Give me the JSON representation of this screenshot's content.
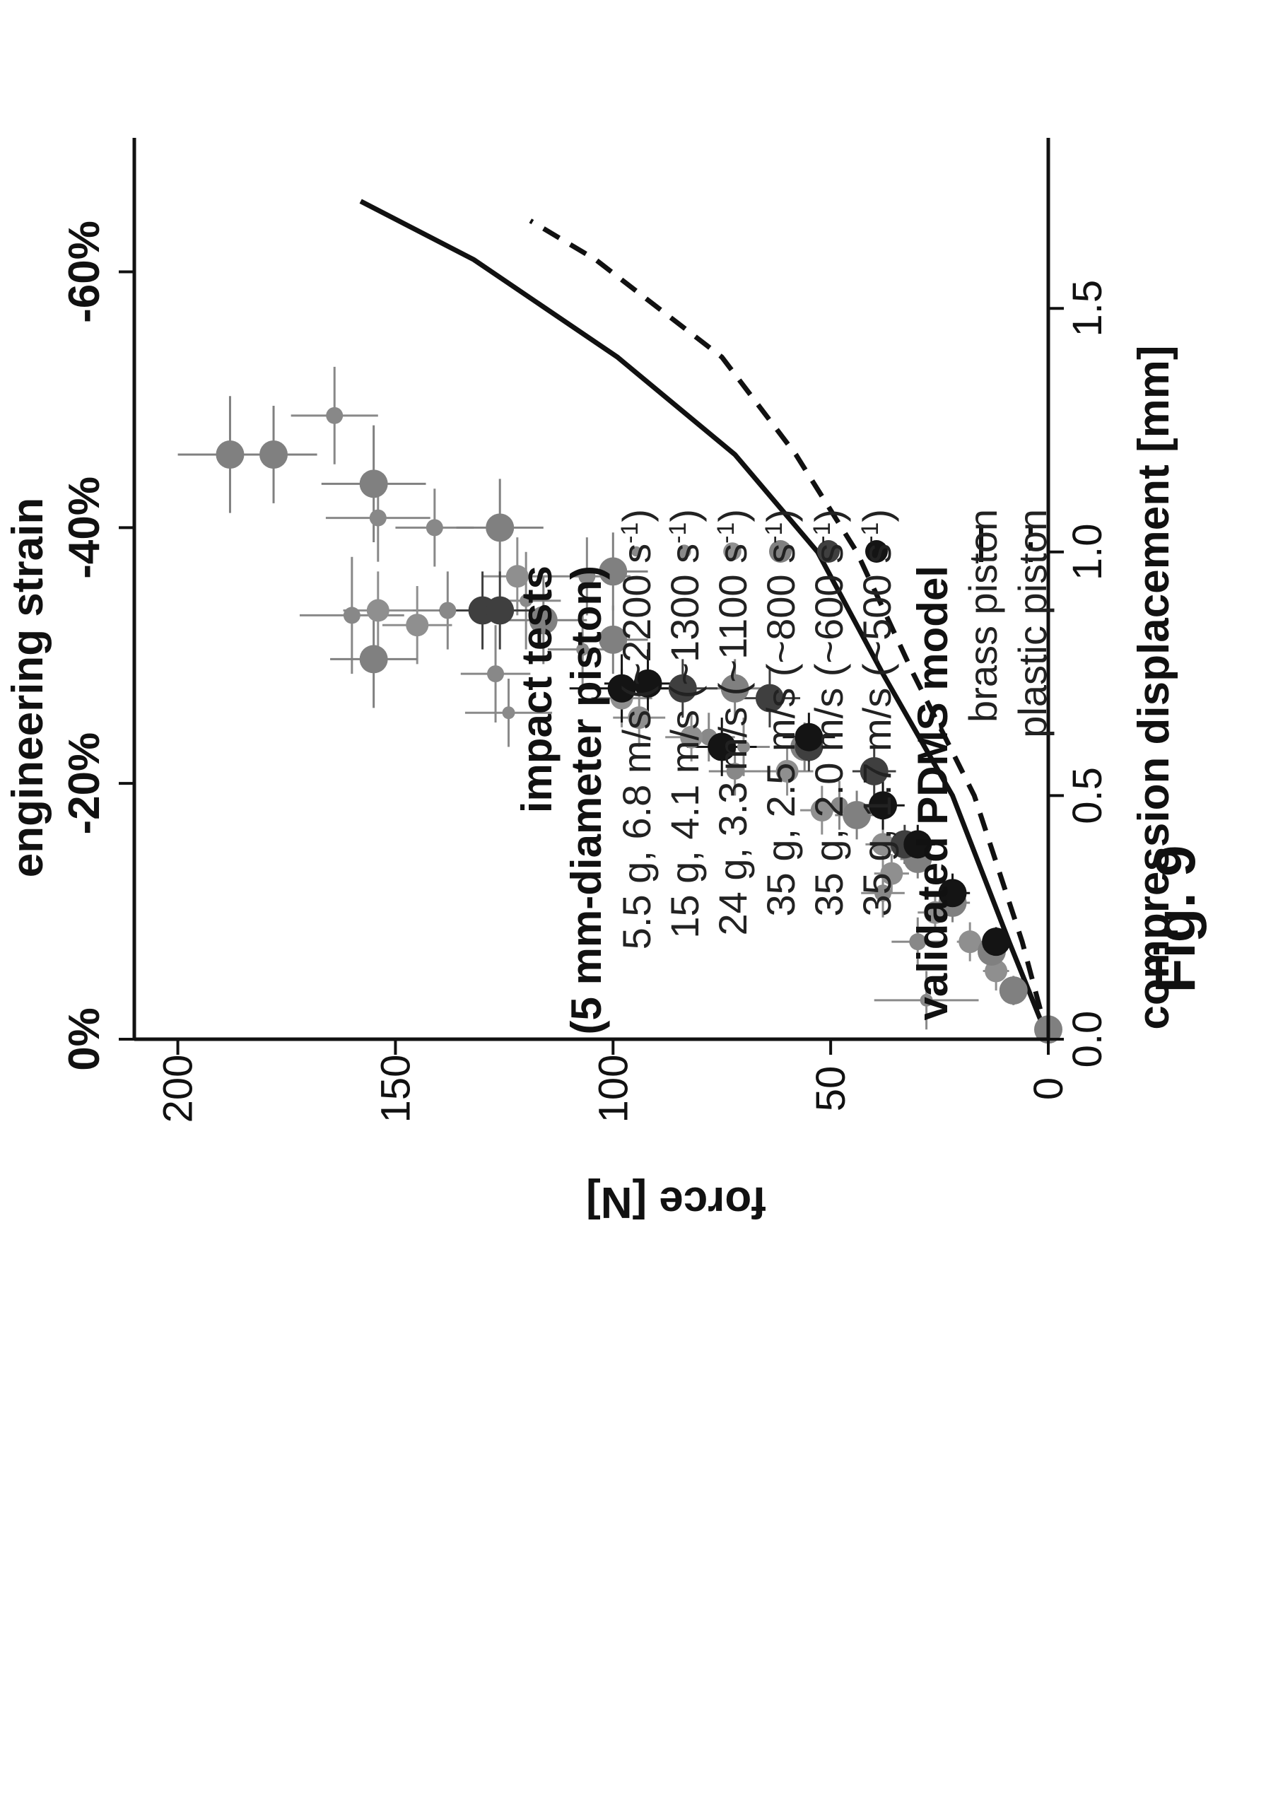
{
  "figure": {
    "label": "Fig. 9"
  },
  "chart_data": {
    "type": "scatter",
    "xlabel": "compression displacement [mm]",
    "ylabel": "force [N]",
    "x2label": "engineering strain",
    "xlim": [
      0,
      1.85
    ],
    "ylim": [
      0,
      210
    ],
    "x_ticks": [
      0.0,
      0.5,
      1.0,
      1.5
    ],
    "x_tick_labels": [
      "0.0",
      "0.5",
      "1.0",
      "1.5"
    ],
    "y_ticks": [
      0,
      50,
      100,
      150,
      200
    ],
    "y_tick_labels": [
      "0",
      "50",
      "100",
      "150",
      "200"
    ],
    "x2_ticks": [
      0,
      0.525,
      1.05,
      1.575
    ],
    "x2_tick_labels": [
      "0%",
      "-20%",
      "-40%",
      "-60%"
    ],
    "grid": false,
    "legend_position": "right",
    "legend": {
      "impact_title": [
        "impact tests",
        "(5 mm-diameter piston)"
      ],
      "model_title": "validated PDMS model"
    },
    "series": [
      {
        "name": "5.5 g, 6.8 m/s (~2200 s",
        "name_suffix": "-1",
        "name_close": ")",
        "color": "#8a8a8a",
        "marker_size": 0.45,
        "points": [
          {
            "x": 0.08,
            "y": 28,
            "xerr": 0.06,
            "yerr": 12
          },
          {
            "x": 0.6,
            "y": 70,
            "xerr": 0.06,
            "yerr": 6
          },
          {
            "x": 0.9,
            "y": 120,
            "xerr": 0.1,
            "yerr": 8
          },
          {
            "x": 0.8,
            "y": 107,
            "xerr": 0.08,
            "yerr": 8
          },
          {
            "x": 0.67,
            "y": 124,
            "xerr": 0.07,
            "yerr": 10
          }
        ]
      },
      {
        "name": "15 g, 4.1 m/s (~1300 s",
        "name_suffix": "-1",
        "name_close": ")",
        "color": "#888888",
        "marker_size": 0.6,
        "points": [
          {
            "x": 0.2,
            "y": 30,
            "xerr": 0.05,
            "yerr": 6
          },
          {
            "x": 0.3,
            "y": 38,
            "xerr": 0.05,
            "yerr": 5
          },
          {
            "x": 1.28,
            "y": 164,
            "xerr": 0.1,
            "yerr": 10
          },
          {
            "x": 1.07,
            "y": 154,
            "xerr": 0.09,
            "yerr": 12
          },
          {
            "x": 0.87,
            "y": 160,
            "xerr": 0.12,
            "yerr": 12
          },
          {
            "x": 0.75,
            "y": 127,
            "xerr": 0.1,
            "yerr": 8
          },
          {
            "x": 0.95,
            "y": 106,
            "xerr": 0.08,
            "yerr": 10
          },
          {
            "x": 0.48,
            "y": 48,
            "xerr": 0.05,
            "yerr": 5
          },
          {
            "x": 0.55,
            "y": 72,
            "xerr": 0.05,
            "yerr": 6
          },
          {
            "x": 0.62,
            "y": 78,
            "xerr": 0.05,
            "yerr": 6
          },
          {
            "x": 1.05,
            "y": 141,
            "xerr": 0.08,
            "yerr": 9
          },
          {
            "x": 0.88,
            "y": 138,
            "xerr": 0.08,
            "yerr": 10
          }
        ]
      },
      {
        "name": "24 g, 3.3 m/s (~1100 s",
        "name_suffix": "-1",
        "name_close": ")",
        "color": "#8f8f8f",
        "marker_size": 0.8,
        "points": [
          {
            "x": 0.14,
            "y": 12,
            "xerr": 0.04,
            "yerr": 3
          },
          {
            "x": 0.2,
            "y": 18,
            "xerr": 0.04,
            "yerr": 3
          },
          {
            "x": 0.26,
            "y": 26,
            "xerr": 0.04,
            "yerr": 4
          },
          {
            "x": 0.34,
            "y": 36,
            "xerr": 0.04,
            "yerr": 4
          },
          {
            "x": 0.4,
            "y": 38,
            "xerr": 0.05,
            "yerr": 4
          },
          {
            "x": 0.47,
            "y": 52,
            "xerr": 0.05,
            "yerr": 5
          },
          {
            "x": 0.55,
            "y": 60,
            "xerr": 0.05,
            "yerr": 6
          },
          {
            "x": 0.62,
            "y": 82,
            "xerr": 0.05,
            "yerr": 6
          },
          {
            "x": 0.66,
            "y": 94,
            "xerr": 0.06,
            "yerr": 6
          },
          {
            "x": 0.85,
            "y": 145,
            "xerr": 0.08,
            "yerr": 8
          },
          {
            "x": 0.88,
            "y": 154,
            "xerr": 0.08,
            "yerr": 8
          },
          {
            "x": 0.95,
            "y": 122,
            "xerr": 0.08,
            "yerr": 8
          },
          {
            "x": 0.7,
            "y": 98,
            "xerr": 0.06,
            "yerr": 7
          }
        ]
      },
      {
        "name": "35 g, 2.5 m/s (~800 s",
        "name_suffix": "-1",
        "name_close": ")",
        "color": "#808080",
        "marker_size": 1.0,
        "points": [
          {
            "x": 0.02,
            "y": 0,
            "xerr": 0.02,
            "yerr": 2
          },
          {
            "x": 0.1,
            "y": 8,
            "xerr": 0.03,
            "yerr": 3
          },
          {
            "x": 0.18,
            "y": 13,
            "xerr": 0.03,
            "yerr": 3
          },
          {
            "x": 0.28,
            "y": 22,
            "xerr": 0.04,
            "yerr": 4
          },
          {
            "x": 0.37,
            "y": 30,
            "xerr": 0.04,
            "yerr": 4
          },
          {
            "x": 0.46,
            "y": 44,
            "xerr": 0.05,
            "yerr": 5
          },
          {
            "x": 0.6,
            "y": 56,
            "xerr": 0.05,
            "yerr": 6
          },
          {
            "x": 0.72,
            "y": 72,
            "xerr": 0.06,
            "yerr": 6
          },
          {
            "x": 0.82,
            "y": 100,
            "xerr": 0.07,
            "yerr": 8
          },
          {
            "x": 1.2,
            "y": 178,
            "xerr": 0.1,
            "yerr": 10
          },
          {
            "x": 1.2,
            "y": 188,
            "xerr": 0.12,
            "yerr": 12
          },
          {
            "x": 1.14,
            "y": 155,
            "xerr": 0.12,
            "yerr": 12
          },
          {
            "x": 0.78,
            "y": 155,
            "xerr": 0.1,
            "yerr": 10
          },
          {
            "x": 1.05,
            "y": 126,
            "xerr": 0.1,
            "yerr": 10
          },
          {
            "x": 0.86,
            "y": 116,
            "xerr": 0.09,
            "yerr": 10
          },
          {
            "x": 0.96,
            "y": 100,
            "xerr": 0.08,
            "yerr": 8
          }
        ]
      },
      {
        "name": "35 g, 2.0 m/s (~600 s",
        "name_suffix": "-1",
        "name_close": ")",
        "color": "#3f3f3f",
        "marker_size": 1.0,
        "points": [
          {
            "x": 0.4,
            "y": 33,
            "xerr": 0.04,
            "yerr": 4
          },
          {
            "x": 0.55,
            "y": 40,
            "xerr": 0.05,
            "yerr": 5
          },
          {
            "x": 0.6,
            "y": 55,
            "xerr": 0.05,
            "yerr": 6
          },
          {
            "x": 0.7,
            "y": 64,
            "xerr": 0.06,
            "yerr": 7
          },
          {
            "x": 0.72,
            "y": 84,
            "xerr": 0.06,
            "yerr": 8
          },
          {
            "x": 0.88,
            "y": 130,
            "xerr": 0.08,
            "yerr": 10
          },
          {
            "x": 0.88,
            "y": 126,
            "xerr": 0.08,
            "yerr": 10
          }
        ]
      },
      {
        "name": "35 g, 1.7 m/s (~500 s",
        "name_suffix": "-1",
        "name_close": ")",
        "color": "#141414",
        "marker_size": 1.0,
        "points": [
          {
            "x": 0.2,
            "y": 12,
            "xerr": 0.03,
            "yerr": 3
          },
          {
            "x": 0.3,
            "y": 22,
            "xerr": 0.04,
            "yerr": 4
          },
          {
            "x": 0.4,
            "y": 30,
            "xerr": 0.04,
            "yerr": 4
          },
          {
            "x": 0.48,
            "y": 38,
            "xerr": 0.05,
            "yerr": 5
          },
          {
            "x": 0.62,
            "y": 55,
            "xerr": 0.05,
            "yerr": 6
          },
          {
            "x": 0.6,
            "y": 75,
            "xerr": 0.06,
            "yerr": 8
          },
          {
            "x": 0.72,
            "y": 98,
            "xerr": 0.07,
            "yerr": 12
          },
          {
            "x": 0.73,
            "y": 92,
            "xerr": 0.07,
            "yerr": 10
          }
        ]
      }
    ],
    "lines": [
      {
        "name": "brass piston",
        "style": "solid",
        "points": [
          [
            0,
            0
          ],
          [
            0.2,
            9
          ],
          [
            0.5,
            22
          ],
          [
            0.75,
            38
          ],
          [
            1.0,
            53
          ],
          [
            1.2,
            72
          ],
          [
            1.4,
            99
          ],
          [
            1.6,
            132
          ],
          [
            1.72,
            158
          ]
        ]
      },
      {
        "name": "plastic piston",
        "style": "dashed",
        "points": [
          [
            0,
            0
          ],
          [
            0.2,
            6
          ],
          [
            0.5,
            17
          ],
          [
            0.75,
            31
          ],
          [
            1.0,
            44
          ],
          [
            1.2,
            58
          ],
          [
            1.4,
            75
          ],
          [
            1.6,
            104
          ],
          [
            1.68,
            119
          ]
        ]
      }
    ]
  }
}
